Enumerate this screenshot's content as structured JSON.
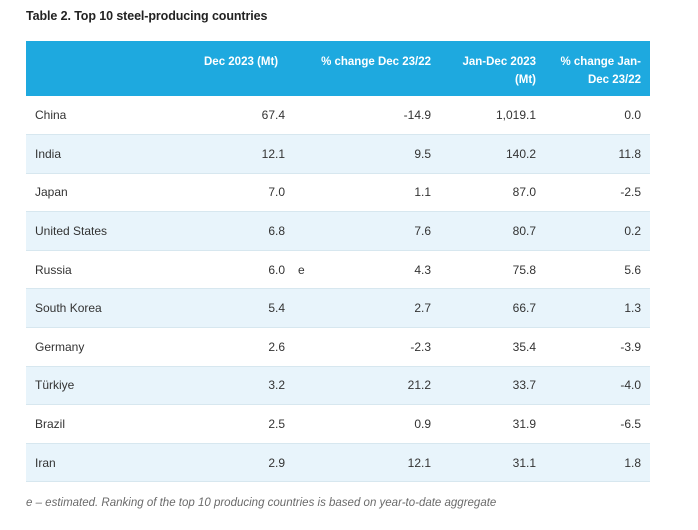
{
  "title": "Table 2. Top 10 steel-producing countries",
  "headers": {
    "dec_2023": "Dec 2023 (Mt)",
    "pct_change_dec": "% change Dec 23/22",
    "jan_dec_2023": "Jan-Dec 2023 (Mt)",
    "pct_change_jan_dec": "% change Jan-Dec 23/22"
  },
  "rows": [
    {
      "country": "China",
      "dec_2023": "67.4",
      "flag": "",
      "pct_change_dec": "-14.9",
      "jan_dec_2023": "1,019.1",
      "pct_change_jan_dec": "0.0"
    },
    {
      "country": "India",
      "dec_2023": "12.1",
      "flag": "",
      "pct_change_dec": "9.5",
      "jan_dec_2023": "140.2",
      "pct_change_jan_dec": "11.8"
    },
    {
      "country": "Japan",
      "dec_2023": "7.0",
      "flag": "",
      "pct_change_dec": "1.1",
      "jan_dec_2023": "87.0",
      "pct_change_jan_dec": "-2.5"
    },
    {
      "country": "United States",
      "dec_2023": "6.8",
      "flag": "",
      "pct_change_dec": "7.6",
      "jan_dec_2023": "80.7",
      "pct_change_jan_dec": "0.2"
    },
    {
      "country": "Russia",
      "dec_2023": "6.0",
      "flag": "e",
      "pct_change_dec": "4.3",
      "jan_dec_2023": "75.8",
      "pct_change_jan_dec": "5.6"
    },
    {
      "country": "South Korea",
      "dec_2023": "5.4",
      "flag": "",
      "pct_change_dec": "2.7",
      "jan_dec_2023": "66.7",
      "pct_change_jan_dec": "1.3"
    },
    {
      "country": "Germany",
      "dec_2023": "2.6",
      "flag": "",
      "pct_change_dec": "-2.3",
      "jan_dec_2023": "35.4",
      "pct_change_jan_dec": "-3.9"
    },
    {
      "country": "Türkiye",
      "dec_2023": "3.2",
      "flag": "",
      "pct_change_dec": "21.2",
      "jan_dec_2023": "33.7",
      "pct_change_jan_dec": "-4.0"
    },
    {
      "country": "Brazil",
      "dec_2023": "2.5",
      "flag": "",
      "pct_change_dec": "0.9",
      "jan_dec_2023": "31.9",
      "pct_change_jan_dec": "-6.5"
    },
    {
      "country": "Iran",
      "dec_2023": "2.9",
      "flag": "",
      "pct_change_dec": "12.1",
      "jan_dec_2023": "31.1",
      "pct_change_jan_dec": "1.8"
    }
  ],
  "footnote": "e – estimated. Ranking of the top 10 producing countries is based on year-to-date aggregate",
  "colors": {
    "header_bg": "#1ea9df",
    "header_text": "#ffffff",
    "stripe_bg": "#e8f4fb",
    "row_border": "#d7e7ef"
  }
}
